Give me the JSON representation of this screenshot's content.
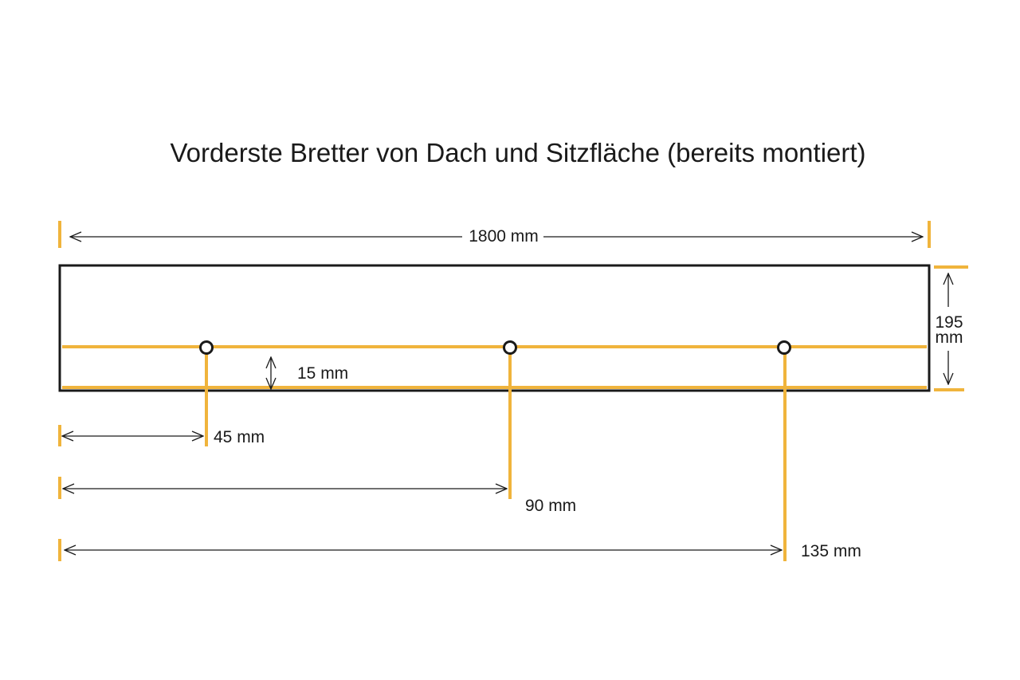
{
  "title": "Vorderste Bretter von Dach und Sitzfläche (bereits montiert)",
  "colors": {
    "accent": "#f0b43c",
    "line": "#1a1a1a",
    "background": "#ffffff"
  },
  "dimensions": {
    "length": "1800 mm",
    "height_line1": "195",
    "height_line2": "mm",
    "offset": "15 mm",
    "holes": [
      {
        "label": "45 mm"
      },
      {
        "label": "90 mm"
      },
      {
        "label": "135 mm"
      }
    ]
  }
}
